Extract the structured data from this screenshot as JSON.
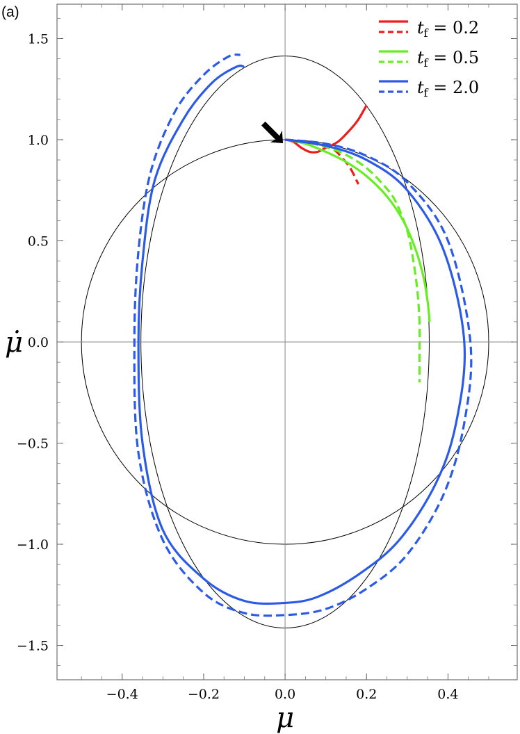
{
  "chart_data": {
    "type": "line",
    "panel_label": "(a)",
    "xlabel": "μ",
    "ylabel": "μ̇",
    "xlim": [
      -0.56,
      0.57
    ],
    "ylim": [
      -1.67,
      1.67
    ],
    "xticks": [
      -0.4,
      -0.2,
      0.0,
      0.2,
      0.4
    ],
    "xtick_labels": [
      "−0.4",
      "−0.2",
      "0.0",
      "0.2",
      "0.4"
    ],
    "yticks": [
      -1.5,
      -1.0,
      -0.5,
      0.0,
      0.5,
      1.0,
      1.5
    ],
    "ytick_labels": [
      "−1.5",
      "−1.0",
      "−0.5",
      "0.0",
      "0.5",
      "1.0",
      "1.5"
    ],
    "grid": false,
    "legend_position": "top-right",
    "legend": [
      {
        "label": "t_f = 0.2",
        "color": "#ee1c1c"
      },
      {
        "label": "t_f = 0.5",
        "color": "#66ee22"
      },
      {
        "label": "t_f = 2.0",
        "color": "#2b5be6"
      }
    ],
    "reference_curves": [
      {
        "name": "ellipse_a",
        "shape": "ellipse",
        "center": [
          0,
          0
        ],
        "semi_x": 0.5,
        "semi_y": 1.0,
        "color": "#000000"
      },
      {
        "name": "ellipse_b",
        "shape": "ellipse",
        "center": [
          0,
          0
        ],
        "semi_x": 0.354,
        "semi_y": 1.414,
        "color": "#000000"
      }
    ],
    "marker": {
      "type": "arrow",
      "points_to": [
        0.0,
        1.0
      ]
    },
    "series": [
      {
        "name": "t_f = 0.2",
        "style": "solid",
        "color": "#ee1c1c",
        "points": [
          [
            0.0,
            1.0
          ],
          [
            0.02,
            0.99
          ],
          [
            0.04,
            0.96
          ],
          [
            0.06,
            0.94
          ],
          [
            0.08,
            0.94
          ],
          [
            0.1,
            0.96
          ],
          [
            0.13,
            0.99
          ],
          [
            0.16,
            1.05
          ],
          [
            0.18,
            1.1
          ],
          [
            0.2,
            1.17
          ]
        ]
      },
      {
        "name": "t_f = 0.2",
        "style": "dashed",
        "color": "#ee1c1c",
        "points": [
          [
            0.0,
            1.0
          ],
          [
            0.03,
            0.995
          ],
          [
            0.06,
            0.985
          ],
          [
            0.09,
            0.97
          ],
          [
            0.12,
            0.95
          ],
          [
            0.14,
            0.91
          ],
          [
            0.16,
            0.86
          ],
          [
            0.18,
            0.78
          ]
        ]
      },
      {
        "name": "t_f = 0.5",
        "style": "solid",
        "color": "#66ee22",
        "points": [
          [
            0.0,
            1.0
          ],
          [
            0.05,
            0.98
          ],
          [
            0.1,
            0.94
          ],
          [
            0.15,
            0.89
          ],
          [
            0.2,
            0.82
          ],
          [
            0.25,
            0.72
          ],
          [
            0.29,
            0.6
          ],
          [
            0.32,
            0.46
          ],
          [
            0.34,
            0.32
          ],
          [
            0.35,
            0.2
          ],
          [
            0.355,
            0.1
          ]
        ]
      },
      {
        "name": "t_f = 0.5",
        "style": "dashed",
        "color": "#66ee22",
        "points": [
          [
            0.0,
            1.0
          ],
          [
            0.05,
            0.99
          ],
          [
            0.1,
            0.965
          ],
          [
            0.15,
            0.925
          ],
          [
            0.2,
            0.86
          ],
          [
            0.24,
            0.78
          ],
          [
            0.27,
            0.7
          ],
          [
            0.3,
            0.55
          ],
          [
            0.315,
            0.4
          ],
          [
            0.325,
            0.25
          ],
          [
            0.33,
            0.1
          ],
          [
            0.33,
            -0.05
          ],
          [
            0.33,
            -0.2
          ]
        ]
      },
      {
        "name": "t_f = 2.0",
        "style": "solid",
        "color": "#2b5be6",
        "points": [
          [
            0.0,
            1.0
          ],
          [
            0.1,
            0.97
          ],
          [
            0.2,
            0.9
          ],
          [
            0.3,
            0.75
          ],
          [
            0.39,
            0.45
          ],
          [
            0.44,
            0.0
          ],
          [
            0.42,
            -0.4
          ],
          [
            0.37,
            -0.7
          ],
          [
            0.28,
            -0.98
          ],
          [
            0.18,
            -1.15
          ],
          [
            0.08,
            -1.26
          ],
          [
            0.0,
            -1.29
          ],
          [
            -0.1,
            -1.28
          ],
          [
            -0.2,
            -1.17
          ],
          [
            -0.3,
            -0.93
          ],
          [
            -0.35,
            -0.5
          ],
          [
            -0.36,
            0.0
          ],
          [
            -0.35,
            0.4
          ],
          [
            -0.32,
            0.8
          ],
          [
            -0.25,
            1.1
          ],
          [
            -0.18,
            1.28
          ],
          [
            -0.12,
            1.36
          ],
          [
            -0.1,
            1.36
          ]
        ]
      },
      {
        "name": "t_f = 2.0",
        "style": "dashed",
        "color": "#2b5be6",
        "points": [
          [
            0.0,
            1.0
          ],
          [
            0.1,
            0.98
          ],
          [
            0.2,
            0.92
          ],
          [
            0.3,
            0.79
          ],
          [
            0.4,
            0.5
          ],
          [
            0.455,
            0.0
          ],
          [
            0.44,
            -0.4
          ],
          [
            0.39,
            -0.75
          ],
          [
            0.3,
            -1.05
          ],
          [
            0.2,
            -1.22
          ],
          [
            0.1,
            -1.32
          ],
          [
            0.0,
            -1.35
          ],
          [
            -0.1,
            -1.34
          ],
          [
            -0.2,
            -1.24
          ],
          [
            -0.3,
            -0.98
          ],
          [
            -0.36,
            -0.55
          ],
          [
            -0.37,
            0.0
          ],
          [
            -0.36,
            0.45
          ],
          [
            -0.33,
            0.84
          ],
          [
            -0.27,
            1.14
          ],
          [
            -0.2,
            1.32
          ],
          [
            -0.14,
            1.41
          ],
          [
            -0.11,
            1.42
          ]
        ]
      }
    ]
  }
}
